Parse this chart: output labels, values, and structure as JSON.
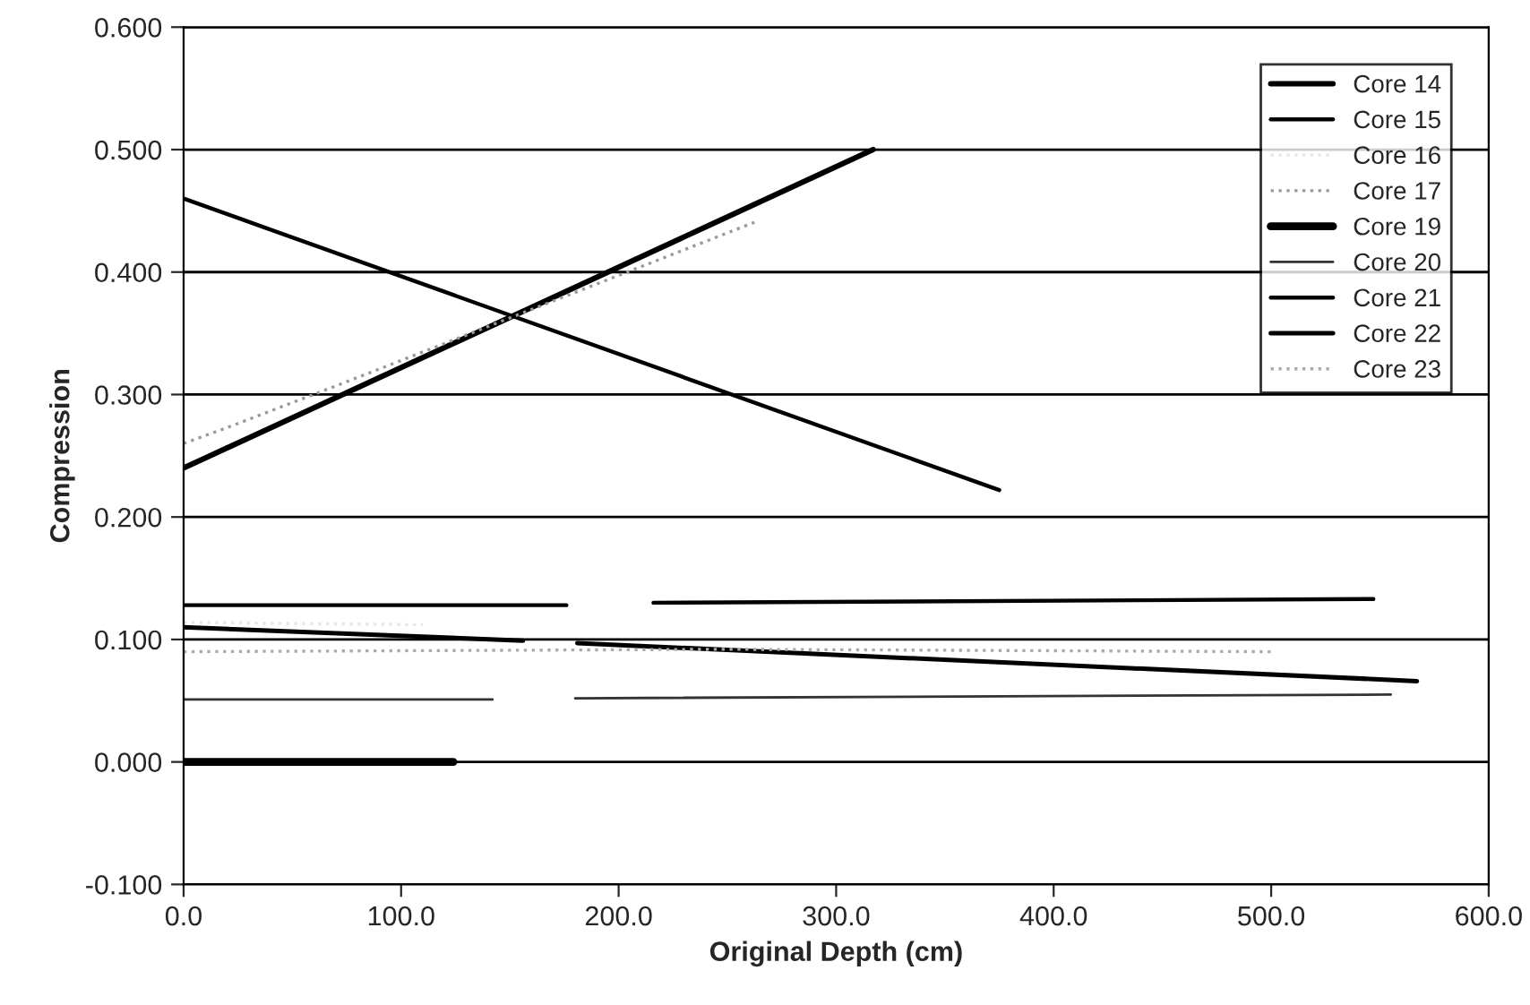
{
  "chart_data": {
    "type": "line",
    "xlabel": "Original Depth (cm)",
    "ylabel": "Compression",
    "xlim": [
      0,
      600
    ],
    "ylim": [
      -0.1,
      0.6
    ],
    "xticks": [
      {
        "value": 0,
        "label": "0.0"
      },
      {
        "value": 100,
        "label": "100.0"
      },
      {
        "value": 200,
        "label": "200.0"
      },
      {
        "value": 300,
        "label": "300.0"
      },
      {
        "value": 400,
        "label": "400.0"
      },
      {
        "value": 500,
        "label": "500.0"
      },
      {
        "value": 600,
        "label": "600.0"
      }
    ],
    "yticks": [
      {
        "value": -0.1,
        "label": "-0.100"
      },
      {
        "value": 0,
        "label": "0.000"
      },
      {
        "value": 0.1,
        "label": "0.100"
      },
      {
        "value": 0.2,
        "label": "0.200"
      },
      {
        "value": 0.3,
        "label": "0.300"
      },
      {
        "value": 0.4,
        "label": "0.400"
      },
      {
        "value": 0.5,
        "label": "0.500"
      },
      {
        "value": 0.6,
        "label": "0.600"
      }
    ],
    "grid": "y",
    "legend": "top right",
    "marker": "none",
    "series": [
      {
        "name": "Core 14",
        "color": "#000000",
        "line_style": "solid",
        "x": [
          0,
          317
        ],
        "values": [
          0.24,
          0.5
        ]
      },
      {
        "name": "Core 15",
        "color": "#000000",
        "line_style": "solid",
        "x": [
          0,
          375
        ],
        "values": [
          0.46,
          0.222
        ]
      },
      {
        "name": "Core 16",
        "color": "#e6e6e6",
        "line_style": "dotted",
        "x": [
          0,
          110
        ],
        "values": [
          0.114,
          0.112
        ]
      },
      {
        "name": "Core 17",
        "color": "#999999",
        "line_style": "dotted",
        "x": [
          0,
          20,
          70,
          263
        ],
        "values": [
          0.26,
          0.273,
          0.307,
          0.441
        ]
      },
      {
        "name": "Core 19",
        "color": "#000000",
        "line_style": "solid",
        "x": [
          0,
          124
        ],
        "values": [
          0.0,
          0.0
        ]
      },
      {
        "name": "Core 20",
        "color": "#333333",
        "line_style": "solid",
        "x": [
          0,
          142,
          161,
          180,
          555
        ],
        "values": [
          0.051,
          0.051,
          null,
          0.052,
          0.055
        ]
      },
      {
        "name": "Core 21",
        "color": "#000000",
        "line_style": "solid",
        "x": [
          0,
          176,
          196,
          216,
          547
        ],
        "values": [
          0.128,
          0.128,
          null,
          0.13,
          0.133
        ]
      },
      {
        "name": "Core 22",
        "color": "#000000",
        "line_style": "solid",
        "x": [
          0,
          156,
          168,
          181,
          567
        ],
        "values": [
          0.11,
          0.099,
          null,
          0.097,
          0.066
        ]
      },
      {
        "name": "Core 23",
        "color": "#aaaaaa",
        "line_style": "dotted",
        "x": [
          0,
          250,
          500
        ],
        "values": [
          0.09,
          0.092,
          0.09
        ]
      }
    ]
  }
}
